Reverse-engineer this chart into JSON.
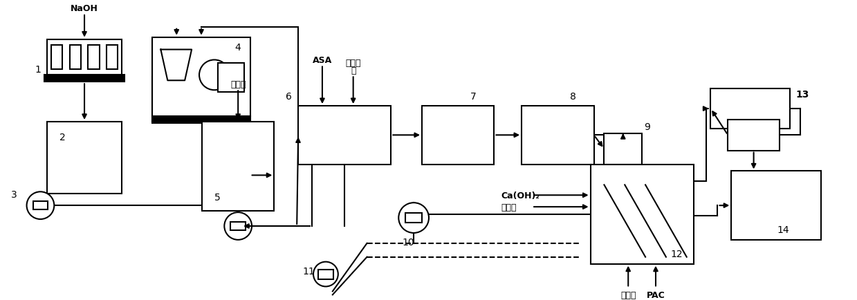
{
  "bg_color": "#ffffff",
  "line_color": "#000000",
  "labels": {
    "NaOH": "NaOH",
    "ASA": "ASA",
    "sanyuan_line1": "三元助",
    "sanyuan_line2": "留",
    "shajunji": "杀菌剂",
    "cahoh2": "Ca(OH)₂",
    "PAC": "PAC",
    "num1": "1",
    "num2": "2",
    "num3": "3",
    "num4": "4",
    "num5": "5",
    "num6": "6",
    "num7": "7",
    "num8": "8",
    "num9": "9",
    "num10": "10",
    "num11": "11",
    "num12": "12",
    "num13": "13",
    "num14": "14"
  }
}
